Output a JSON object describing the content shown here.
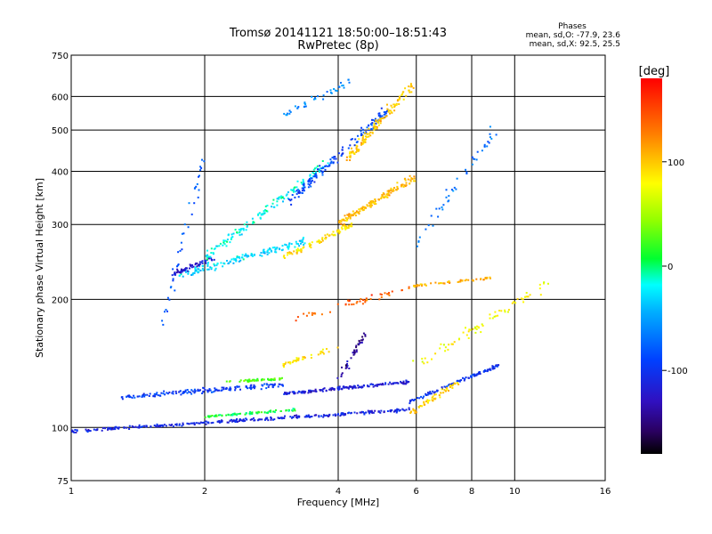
{
  "chart_data": {
    "type": "scatter",
    "title": "Tromsø 20141121 18:50:00–18:51:43",
    "subtitle": "RwPretec (8p)",
    "xlabel": "Frequency [MHz]",
    "ylabel": "Stationary phase Virtual Height [km]",
    "x_scale": "log",
    "y_scale": "log",
    "xlim": [
      1,
      16
    ],
    "ylim": [
      75,
      750
    ],
    "x_ticks": [
      1,
      2,
      4,
      6,
      8,
      10,
      16
    ],
    "y_ticks": [
      75,
      100,
      200,
      300,
      400,
      500,
      600,
      750
    ],
    "grid": true,
    "phase_stats": {
      "title": "Phases",
      "line_o": "mean, sd,O: -77.9, 23.6",
      "line_x": "mean, sd,X:  92.5, 25.5"
    },
    "colorbar": {
      "label": "[deg]",
      "ticks": [
        100,
        0,
        -100
      ],
      "range": [
        -180,
        180
      ],
      "colormap": "rainbow"
    },
    "traces": [
      {
        "x_start": 1.0,
        "x_end": 5.8,
        "y_start": 98,
        "y_end": 110,
        "phase": -110,
        "count": 320,
        "spread": 0.012
      },
      {
        "x_start": 1.3,
        "x_end": 3.0,
        "y_start": 118,
        "y_end": 126,
        "phase": -95,
        "count": 160,
        "spread": 0.018
      },
      {
        "x_start": 2.0,
        "x_end": 3.2,
        "y_start": 106,
        "y_end": 110,
        "phase": 10,
        "count": 80,
        "spread": 0.01
      },
      {
        "x_start": 3.0,
        "x_end": 5.8,
        "y_start": 120,
        "y_end": 128,
        "phase": -115,
        "count": 160,
        "spread": 0.012
      },
      {
        "x_start": 2.2,
        "x_end": 3.0,
        "y_start": 128,
        "y_end": 130,
        "phase": 25,
        "count": 50,
        "spread": 0.01
      },
      {
        "x_start": 5.8,
        "x_end": 9.2,
        "y_start": 115,
        "y_end": 140,
        "phase": -100,
        "count": 110,
        "spread": 0.012
      },
      {
        "x_start": 5.8,
        "x_end": 7.5,
        "y_start": 108,
        "y_end": 128,
        "phase": 95,
        "count": 60,
        "spread": 0.02
      },
      {
        "x_start": 1.75,
        "x_end": 3.4,
        "y_start": 228,
        "y_end": 275,
        "phase": -30,
        "count": 150,
        "spread": 0.03
      },
      {
        "x_start": 1.7,
        "x_end": 2.1,
        "y_start": 230,
        "y_end": 250,
        "phase": -120,
        "count": 60,
        "spread": 0.02
      },
      {
        "x_start": 2.0,
        "x_end": 3.8,
        "y_start": 250,
        "y_end": 420,
        "phase": -20,
        "count": 140,
        "spread": 0.04
      },
      {
        "x_start": 3.0,
        "x_end": 4.3,
        "y_start": 250,
        "y_end": 300,
        "phase": 90,
        "count": 80,
        "spread": 0.02
      },
      {
        "x_start": 4.0,
        "x_end": 6.0,
        "y_start": 300,
        "y_end": 390,
        "phase": 105,
        "count": 150,
        "spread": 0.03
      },
      {
        "x_start": 3.1,
        "x_end": 5.2,
        "y_start": 340,
        "y_end": 560,
        "phase": -90,
        "count": 140,
        "spread": 0.04
      },
      {
        "x_start": 4.2,
        "x_end": 5.9,
        "y_start": 430,
        "y_end": 640,
        "phase": 100,
        "count": 130,
        "spread": 0.04
      },
      {
        "x_start": 3.0,
        "x_end": 4.3,
        "y_start": 540,
        "y_end": 650,
        "phase": -60,
        "count": 40,
        "spread": 0.03
      },
      {
        "x_start": 3.2,
        "x_end": 6.0,
        "y_start": 180,
        "y_end": 215,
        "phase": 140,
        "count": 50,
        "spread": 0.03
      },
      {
        "x_start": 3.0,
        "x_end": 4.0,
        "y_start": 140,
        "y_end": 155,
        "phase": 90,
        "count": 40,
        "spread": 0.02
      },
      {
        "x_start": 4.0,
        "x_end": 4.6,
        "y_start": 130,
        "y_end": 165,
        "phase": -140,
        "count": 40,
        "spread": 0.03
      },
      {
        "x_start": 5.9,
        "x_end": 9.0,
        "y_start": 215,
        "y_end": 225,
        "phase": 110,
        "count": 50,
        "spread": 0.01
      },
      {
        "x_start": 6.0,
        "x_end": 12.0,
        "y_start": 140,
        "y_end": 220,
        "phase": 80,
        "count": 70,
        "spread": 0.05
      },
      {
        "x_start": 6.0,
        "x_end": 9.0,
        "y_start": 270,
        "y_end": 500,
        "phase": -70,
        "count": 45,
        "spread": 0.05
      },
      {
        "x_start": 1.6,
        "x_end": 2.0,
        "y_start": 175,
        "y_end": 430,
        "phase": -80,
        "count": 40,
        "spread": 0.05
      }
    ]
  }
}
